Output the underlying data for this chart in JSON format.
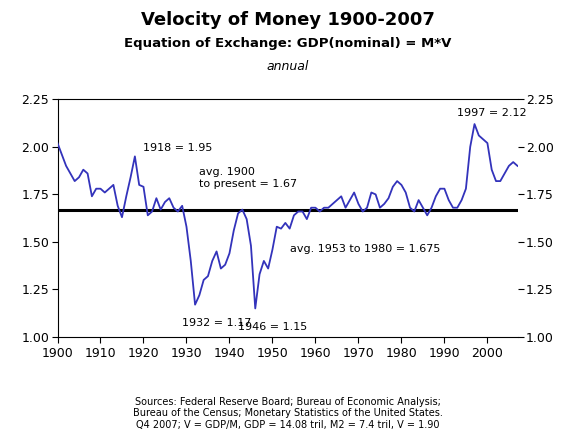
{
  "title": "Velocity of Money 1900-2007",
  "subtitle": "Equation of Exchange: GDP(nominal) = M*V",
  "subtitle2": "annual",
  "source_text": "Sources: Federal Reserve Board; Bureau of Economic Analysis;\nBureau of the Census; Monetary Statistics of the United States.\nQ4 2007; V = GDP/M, GDP = 14.08 tril, M2 = 7.4 tril, V = 1.90",
  "line_color": "#3333bb",
  "avg_line_color": "#000000",
  "avg_value": 1.67,
  "ylim": [
    1.0,
    2.25
  ],
  "yticks": [
    1.0,
    1.25,
    1.5,
    1.75,
    2.0,
    2.25
  ],
  "years": [
    1900,
    1901,
    1902,
    1903,
    1904,
    1905,
    1906,
    1907,
    1908,
    1909,
    1910,
    1911,
    1912,
    1913,
    1914,
    1915,
    1916,
    1917,
    1918,
    1919,
    1920,
    1921,
    1922,
    1923,
    1924,
    1925,
    1926,
    1927,
    1928,
    1929,
    1930,
    1931,
    1932,
    1933,
    1934,
    1935,
    1936,
    1937,
    1938,
    1939,
    1940,
    1941,
    1942,
    1943,
    1944,
    1945,
    1946,
    1947,
    1948,
    1949,
    1950,
    1951,
    1952,
    1953,
    1954,
    1955,
    1956,
    1957,
    1958,
    1959,
    1960,
    1961,
    1962,
    1963,
    1964,
    1965,
    1966,
    1967,
    1968,
    1969,
    1970,
    1971,
    1972,
    1973,
    1974,
    1975,
    1976,
    1977,
    1978,
    1979,
    1980,
    1981,
    1982,
    1983,
    1984,
    1985,
    1986,
    1987,
    1988,
    1989,
    1990,
    1991,
    1992,
    1993,
    1994,
    1995,
    1996,
    1997,
    1998,
    1999,
    2000,
    2001,
    2002,
    2003,
    2004,
    2005,
    2006,
    2007
  ],
  "values": [
    2.02,
    1.96,
    1.9,
    1.86,
    1.82,
    1.84,
    1.88,
    1.86,
    1.74,
    1.78,
    1.78,
    1.76,
    1.78,
    1.8,
    1.69,
    1.63,
    1.74,
    1.84,
    1.95,
    1.8,
    1.79,
    1.64,
    1.66,
    1.73,
    1.67,
    1.71,
    1.73,
    1.68,
    1.66,
    1.69,
    1.58,
    1.4,
    1.17,
    1.22,
    1.3,
    1.32,
    1.4,
    1.45,
    1.36,
    1.38,
    1.44,
    1.56,
    1.65,
    1.67,
    1.62,
    1.48,
    1.15,
    1.33,
    1.4,
    1.36,
    1.46,
    1.58,
    1.57,
    1.6,
    1.57,
    1.64,
    1.66,
    1.66,
    1.62,
    1.68,
    1.68,
    1.66,
    1.68,
    1.68,
    1.7,
    1.72,
    1.74,
    1.68,
    1.72,
    1.76,
    1.7,
    1.66,
    1.68,
    1.76,
    1.75,
    1.68,
    1.7,
    1.73,
    1.79,
    1.82,
    1.8,
    1.76,
    1.68,
    1.66,
    1.72,
    1.68,
    1.64,
    1.68,
    1.74,
    1.78,
    1.78,
    1.72,
    1.68,
    1.68,
    1.72,
    1.78,
    2.0,
    2.12,
    2.06,
    2.04,
    2.02,
    1.88,
    1.82,
    1.82,
    1.86,
    1.9,
    1.92,
    1.9
  ]
}
